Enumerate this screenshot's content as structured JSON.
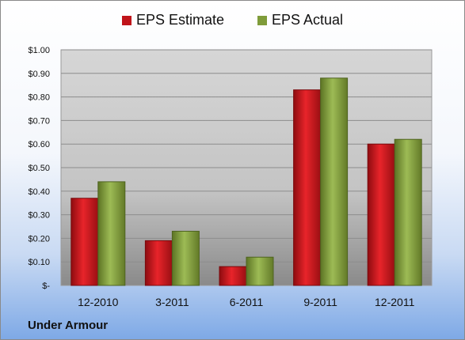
{
  "chart_data": {
    "type": "bar",
    "categories": [
      "12-2010",
      "3-2011",
      "6-2011",
      "9-2011",
      "12-2011"
    ],
    "series": [
      {
        "name": "EPS Estimate",
        "values": [
          0.37,
          0.19,
          0.08,
          0.83,
          0.6
        ],
        "color": "#c0141a"
      },
      {
        "name": "EPS Actual",
        "values": [
          0.44,
          0.23,
          0.12,
          0.88,
          0.62
        ],
        "color": "#7f9c3a"
      }
    ],
    "ylim": [
      0,
      1.0
    ],
    "yticks": [
      {
        "value": 0,
        "label": "$-"
      },
      {
        "value": 0.1,
        "label": "$0.10"
      },
      {
        "value": 0.2,
        "label": "$0.20"
      },
      {
        "value": 0.3,
        "label": "$0.30"
      },
      {
        "value": 0.4,
        "label": "$0.40"
      },
      {
        "value": 0.5,
        "label": "$0.50"
      },
      {
        "value": 0.6,
        "label": "$0.60"
      },
      {
        "value": 0.7,
        "label": "$0.70"
      },
      {
        "value": 0.8,
        "label": "$0.80"
      },
      {
        "value": 0.9,
        "label": "$0.90"
      },
      {
        "value": 1.0,
        "label": "$1.00"
      }
    ],
    "grid": true,
    "legend_position": "top"
  },
  "legend": {
    "estimate_label": "EPS Estimate",
    "actual_label": "EPS Actual"
  },
  "company_name": "Under Armour"
}
